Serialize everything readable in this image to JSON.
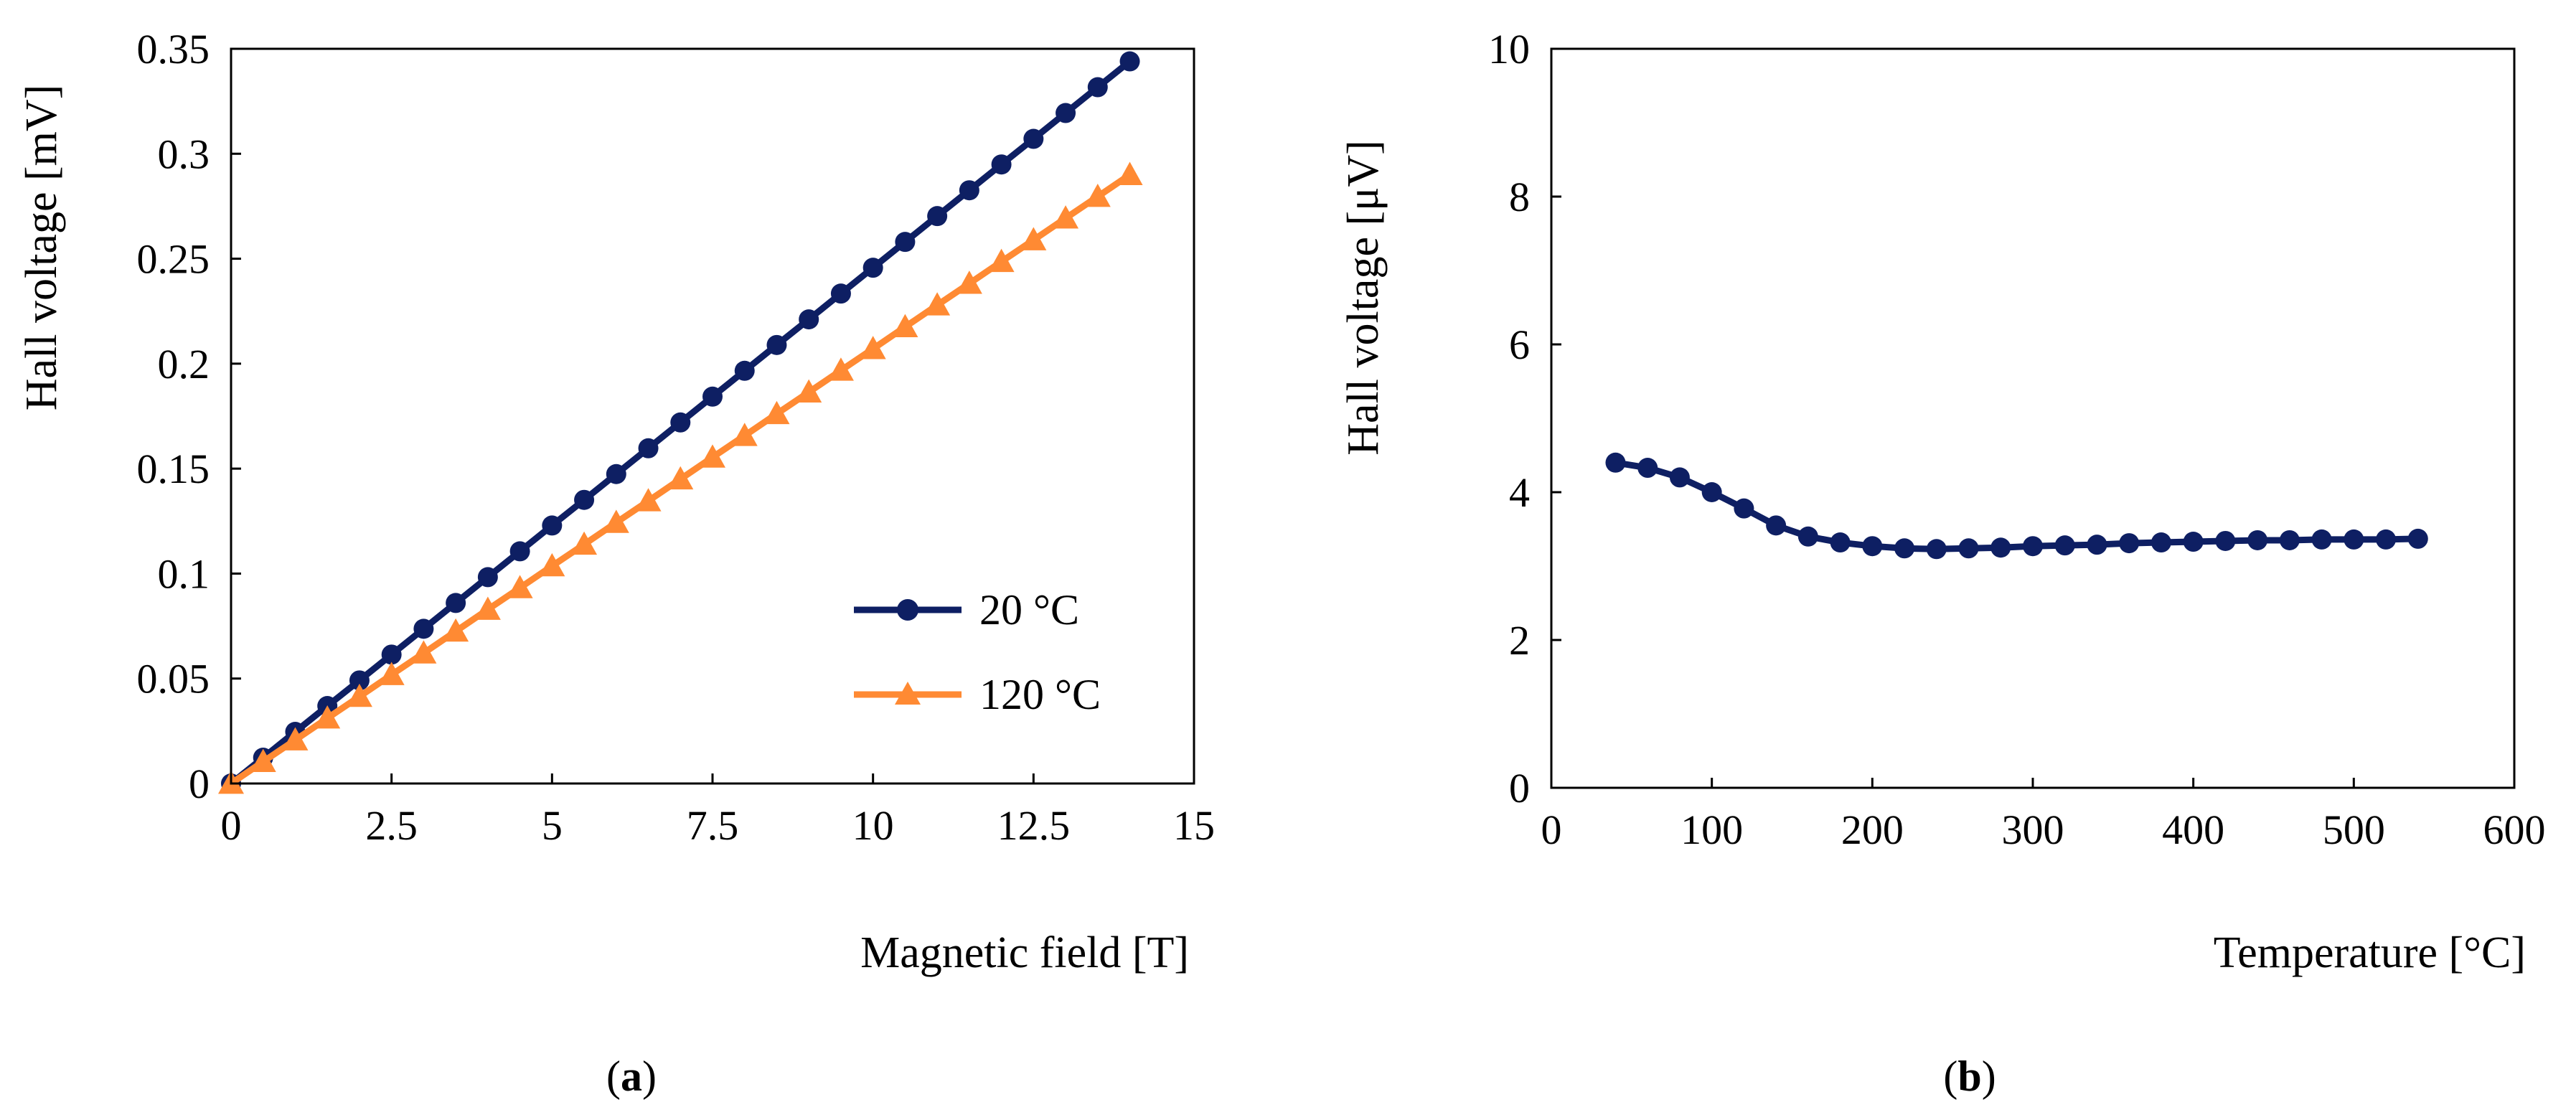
{
  "colors": {
    "series_20C": "#0e1f63",
    "series_120C": "#ff8a33"
  },
  "chart_data": [
    {
      "panel": "a",
      "type": "line",
      "xlabel": "Magnetic field [T]",
      "ylabel": "Hall voltage [mV]",
      "xlim": [
        0,
        15
      ],
      "ylim": [
        0,
        0.35
      ],
      "xticks": [
        0,
        2.5,
        5,
        7.5,
        10,
        12.5,
        15
      ],
      "xtick_labels": [
        "0",
        "2.5",
        "5",
        "7.5",
        "10",
        "12.5",
        "15"
      ],
      "yticks": [
        0,
        0.05,
        0.1,
        0.15,
        0.2,
        0.25,
        0.3,
        0.35
      ],
      "ytick_labels": [
        "0",
        "0.05",
        "0.1",
        "0.15",
        "0.2",
        "0.25",
        "0.3",
        "0.35"
      ],
      "legend_position": "lower-right",
      "series": [
        {
          "name": "20 °C",
          "marker": "circle",
          "color": "#0e1f63",
          "x": [
            0,
            0.5,
            1,
            1.5,
            2,
            2.5,
            3,
            3.5,
            4,
            4.5,
            5,
            5.5,
            6,
            6.5,
            7,
            7.5,
            8,
            8.5,
            9,
            9.5,
            10,
            10.5,
            11,
            11.5,
            12,
            12.5,
            13,
            13.5,
            14
          ],
          "y": [
            0,
            0.0123,
            0.0246,
            0.0369,
            0.0491,
            0.0614,
            0.0737,
            0.086,
            0.0983,
            0.1106,
            0.1229,
            0.1351,
            0.1474,
            0.1597,
            0.172,
            0.1843,
            0.1966,
            0.2089,
            0.2211,
            0.2334,
            0.2457,
            0.258,
            0.2703,
            0.2826,
            0.2949,
            0.3071,
            0.3194,
            0.3317,
            0.344
          ]
        },
        {
          "name": "120 °C",
          "marker": "triangle",
          "color": "#ff8a33",
          "x": [
            0,
            0.5,
            1,
            1.5,
            2,
            2.5,
            3,
            3.5,
            4,
            4.5,
            5,
            5.5,
            6,
            6.5,
            7,
            7.5,
            8,
            8.5,
            9,
            9.5,
            10,
            10.5,
            11,
            11.5,
            12,
            12.5,
            13,
            13.5,
            14
          ],
          "y": [
            0,
            0.0104,
            0.0207,
            0.0311,
            0.0414,
            0.0518,
            0.0621,
            0.0725,
            0.0829,
            0.0932,
            0.1036,
            0.1139,
            0.1243,
            0.1346,
            0.145,
            0.1554,
            0.1657,
            0.1761,
            0.1864,
            0.1968,
            0.2071,
            0.2175,
            0.2279,
            0.2382,
            0.2486,
            0.2589,
            0.2693,
            0.2796,
            0.29
          ]
        }
      ],
      "caption": "a"
    },
    {
      "panel": "b",
      "type": "line",
      "xlabel": "Temperature [°C]",
      "ylabel": "Hall voltage [μV]",
      "xlim": [
        0,
        600
      ],
      "ylim": [
        0,
        10
      ],
      "xticks": [
        0,
        100,
        200,
        300,
        400,
        500,
        600
      ],
      "xtick_labels": [
        "0",
        "100",
        "200",
        "300",
        "400",
        "500",
        "600"
      ],
      "yticks": [
        0,
        2,
        4,
        6,
        8,
        10
      ],
      "ytick_labels": [
        "0",
        "2",
        "4",
        "6",
        "8",
        "10"
      ],
      "series": [
        {
          "name": "Hall voltage",
          "marker": "circle",
          "color": "#0e1f63",
          "x": [
            40,
            60,
            80,
            100,
            120,
            140,
            160,
            180,
            200,
            220,
            240,
            260,
            280,
            300,
            320,
            340,
            360,
            380,
            400,
            420,
            440,
            460,
            480,
            500,
            520,
            540
          ],
          "y": [
            4.4,
            4.33,
            4.2,
            4.0,
            3.78,
            3.55,
            3.4,
            3.32,
            3.27,
            3.24,
            3.23,
            3.24,
            3.25,
            3.27,
            3.28,
            3.29,
            3.31,
            3.32,
            3.33,
            3.34,
            3.35,
            3.35,
            3.36,
            3.36,
            3.36,
            3.37
          ]
        }
      ],
      "caption": "b"
    }
  ]
}
